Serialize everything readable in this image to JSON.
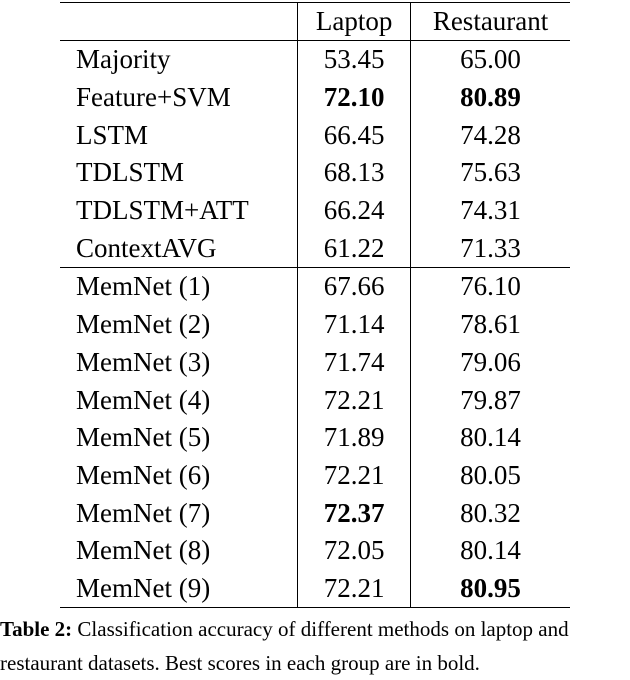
{
  "table": {
    "headers": [
      "",
      "Laptop",
      "Restaurant"
    ],
    "groups": [
      [
        {
          "method": "Majority",
          "laptop": "53.45",
          "restaurant": "65.00",
          "bold_laptop": false,
          "bold_restaurant": false
        },
        {
          "method": "Feature+SVM",
          "laptop": "72.10",
          "restaurant": "80.89",
          "bold_laptop": true,
          "bold_restaurant": true
        },
        {
          "method": "LSTM",
          "laptop": "66.45",
          "restaurant": "74.28",
          "bold_laptop": false,
          "bold_restaurant": false
        },
        {
          "method": "TDLSTM",
          "laptop": "68.13",
          "restaurant": "75.63",
          "bold_laptop": false,
          "bold_restaurant": false
        },
        {
          "method": "TDLSTM+ATT",
          "laptop": "66.24",
          "restaurant": "74.31",
          "bold_laptop": false,
          "bold_restaurant": false
        },
        {
          "method": "ContextAVG",
          "laptop": "61.22",
          "restaurant": "71.33",
          "bold_laptop": false,
          "bold_restaurant": false
        }
      ],
      [
        {
          "method": "MemNet (1)",
          "laptop": "67.66",
          "restaurant": "76.10",
          "bold_laptop": false,
          "bold_restaurant": false
        },
        {
          "method": "MemNet (2)",
          "laptop": "71.14",
          "restaurant": "78.61",
          "bold_laptop": false,
          "bold_restaurant": false
        },
        {
          "method": "MemNet (3)",
          "laptop": "71.74",
          "restaurant": "79.06",
          "bold_laptop": false,
          "bold_restaurant": false
        },
        {
          "method": "MemNet (4)",
          "laptop": "72.21",
          "restaurant": "79.87",
          "bold_laptop": false,
          "bold_restaurant": false
        },
        {
          "method": "MemNet (5)",
          "laptop": "71.89",
          "restaurant": "80.14",
          "bold_laptop": false,
          "bold_restaurant": false
        },
        {
          "method": "MemNet (6)",
          "laptop": "72.21",
          "restaurant": "80.05",
          "bold_laptop": false,
          "bold_restaurant": false
        },
        {
          "method": "MemNet (7)",
          "laptop": "72.37",
          "restaurant": "80.32",
          "bold_laptop": true,
          "bold_restaurant": false
        },
        {
          "method": "MemNet (8)",
          "laptop": "72.05",
          "restaurant": "80.14",
          "bold_laptop": false,
          "bold_restaurant": false
        },
        {
          "method": "MemNet (9)",
          "laptop": "72.21",
          "restaurant": "80.95",
          "bold_laptop": false,
          "bold_restaurant": true
        }
      ]
    ]
  },
  "caption": {
    "label": "Table 2:",
    "text": " Classification accuracy of different methods on laptop and restaurant datasets. Best scores in each group are in bold."
  }
}
